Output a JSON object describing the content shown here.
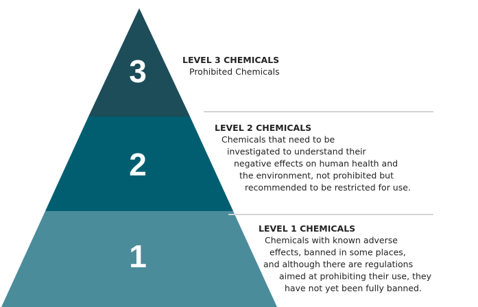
{
  "levels": [
    {
      "number": "3",
      "title": "LEVEL 3 CHEMICALS",
      "description": [
        "Prohibited Chemicals"
      ]
    },
    {
      "number": "2",
      "title": "LEVEL 2 CHEMICALS",
      "description": [
        "Chemicals that need to be",
        "investigated to understand their",
        "negative effects on human health and",
        "the environment, not prohibited but",
        "recommended to be restricted for use."
      ]
    },
    {
      "number": "1",
      "title": "LEVEL 1 CHEMICALS",
      "description": [
        "Chemicals with known adverse",
        "effects, banned in some places,",
        "and although there are regulations",
        "aimed at prohibiting their use, they",
        "have not yet been fully banned."
      ]
    }
  ]
}
